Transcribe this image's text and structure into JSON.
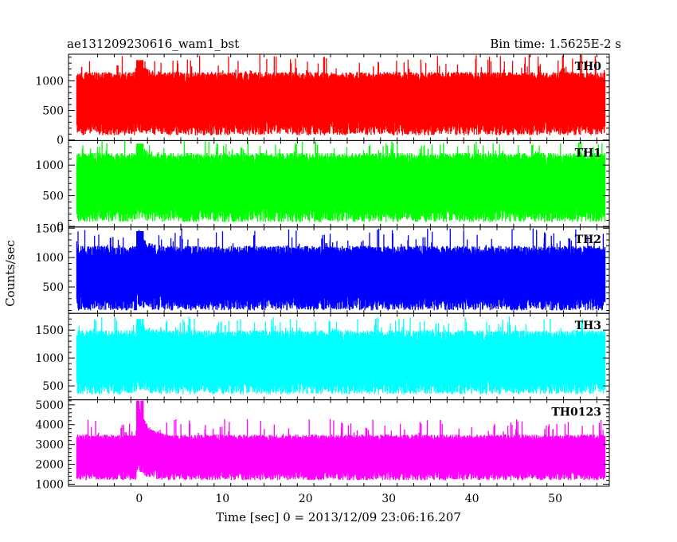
{
  "chart_data": {
    "type": "line",
    "title_left": "ae131209230616_wam1_bst",
    "title_right": "Bin time: 1.5625E-2 s",
    "xlabel": "Time [sec] 0 = 2013/12/09 23:06:16.207",
    "ylabel": "Counts/sec",
    "xlim": [
      -8.5,
      56.5
    ],
    "x_ticks": [
      0,
      10,
      20,
      30,
      40,
      50
    ],
    "x_range": [
      -7.5,
      56
    ],
    "grid": false,
    "panels": [
      {
        "name": "TH0",
        "color": "#ff0000",
        "ylim": [
          -10,
          1450
        ],
        "y_ticks": [
          0,
          500,
          1000
        ],
        "mean": 560,
        "low": 80,
        "high": 1150,
        "spike_max": 1450,
        "burst_peak": 1350
      },
      {
        "name": "TH1",
        "color": "#00ff00",
        "ylim": [
          -10,
          1400
        ],
        "y_ticks": [
          0,
          500,
          1000
        ],
        "mean": 560,
        "low": 70,
        "high": 1200,
        "spike_max": 1400,
        "burst_peak": 1350
      },
      {
        "name": "TH2",
        "color": "#0000ff",
        "ylim": [
          50,
          1520
        ],
        "y_ticks": [
          500,
          1000,
          1500
        ],
        "mean": 650,
        "low": 100,
        "high": 1200,
        "spike_max": 1500,
        "burst_peak": 1450
      },
      {
        "name": "TH3",
        "color": "#00ffff",
        "ylim": [
          250,
          1800
        ],
        "y_ticks": [
          500,
          1000,
          1500
        ],
        "mean": 950,
        "low": 350,
        "high": 1500,
        "spike_max": 1750,
        "burst_peak": 1700
      },
      {
        "name": "TH0123",
        "color": "#ff00ff",
        "ylim": [
          900,
          5250
        ],
        "y_ticks": [
          1000,
          2000,
          3000,
          4000,
          5000
        ],
        "mean": 2300,
        "low": 1200,
        "high": 3500,
        "spike_max": 4300,
        "burst_peak": 5200
      }
    ]
  }
}
